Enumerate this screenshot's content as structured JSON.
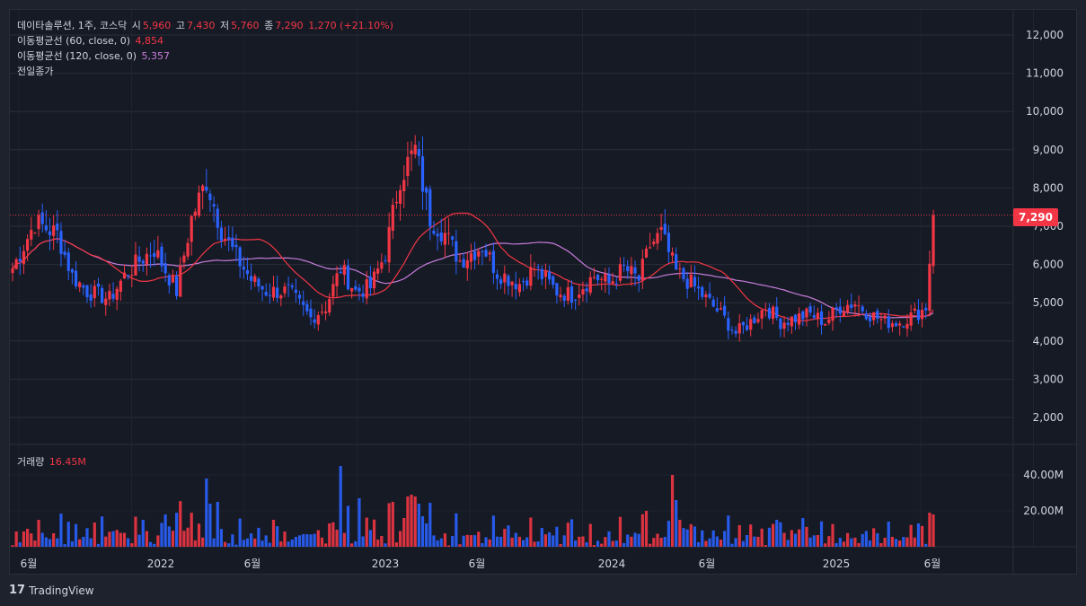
{
  "legend": {
    "symbol": "데이타솔루션, 1주, 코스닥",
    "open_label": "시",
    "open": "5,960",
    "high_label": "고",
    "high": "7,430",
    "low_label": "저",
    "low": "5,760",
    "close_label": "종",
    "close": "7,290",
    "change": "1,270 (+21.10%)",
    "ma60_label": "이동평균선 (60, close, 0)",
    "ma60_value": "4,854",
    "ma120_label": "이동평균선 (120, close, 0)",
    "ma120_value": "5,357",
    "prev_close_label": "전일종가",
    "volume_label": "거래량",
    "volume_value": "16.45M"
  },
  "last_price_badge": "7,290",
  "footer": {
    "brand": "TradingView"
  },
  "colors": {
    "up": "#f23645",
    "down": "#2962ff",
    "ma60": "#f23645",
    "ma120": "#c77ddb",
    "grid": "#2a2e39"
  },
  "chart_data": {
    "type": "candlestick",
    "interval": "1 week",
    "price_ylim": [
      1000,
      12500
    ],
    "price_ticks": [
      "12,000",
      "11,000",
      "10,000",
      "9,000",
      "8,000",
      "7,000",
      "6,000",
      "5,000",
      "4,000",
      "3,000",
      "2,000"
    ],
    "volume_ticks": [
      "40.00M",
      "20.00M"
    ],
    "x_ticks": [
      "6월",
      "2022",
      "6월",
      "2023",
      "6월",
      "2024",
      "6월",
      "2025",
      "6월"
    ],
    "last_close": 7290,
    "anchors": [
      {
        "t": 0,
        "c": 5900
      },
      {
        "t": 6,
        "c": 7100
      },
      {
        "t": 12,
        "c": 6800
      },
      {
        "t": 16,
        "c": 5700
      },
      {
        "t": 20,
        "c": 5300
      },
      {
        "t": 26,
        "c": 5100
      },
      {
        "t": 30,
        "c": 5700
      },
      {
        "t": 34,
        "c": 6100
      },
      {
        "t": 38,
        "c": 6400
      },
      {
        "t": 44,
        "c": 5300
      },
      {
        "t": 48,
        "c": 7200
      },
      {
        "t": 52,
        "c": 8200
      },
      {
        "t": 56,
        "c": 6900
      },
      {
        "t": 60,
        "c": 6200
      },
      {
        "t": 64,
        "c": 5600
      },
      {
        "t": 68,
        "c": 5300
      },
      {
        "t": 74,
        "c": 5300
      },
      {
        "t": 80,
        "c": 4600
      },
      {
        "t": 84,
        "c": 4900
      },
      {
        "t": 88,
        "c": 5900
      },
      {
        "t": 92,
        "c": 5300
      },
      {
        "t": 96,
        "c": 5400
      },
      {
        "t": 100,
        "c": 6300
      },
      {
        "t": 104,
        "c": 8300
      },
      {
        "t": 108,
        "c": 9000
      },
      {
        "t": 112,
        "c": 7200
      },
      {
        "t": 116,
        "c": 6800
      },
      {
        "t": 120,
        "c": 6100
      },
      {
        "t": 126,
        "c": 6500
      },
      {
        "t": 130,
        "c": 5800
      },
      {
        "t": 136,
        "c": 5500
      },
      {
        "t": 140,
        "c": 5900
      },
      {
        "t": 146,
        "c": 5300
      },
      {
        "t": 150,
        "c": 5200
      },
      {
        "t": 156,
        "c": 5700
      },
      {
        "t": 160,
        "c": 5500
      },
      {
        "t": 164,
        "c": 5900
      },
      {
        "t": 168,
        "c": 5600
      },
      {
        "t": 171,
        "c": 6500
      },
      {
        "t": 174,
        "c": 6800
      },
      {
        "t": 178,
        "c": 5800
      },
      {
        "t": 182,
        "c": 5500
      },
      {
        "t": 186,
        "c": 5100
      },
      {
        "t": 190,
        "c": 4700
      },
      {
        "t": 194,
        "c": 4200
      },
      {
        "t": 198,
        "c": 4500
      },
      {
        "t": 202,
        "c": 4900
      },
      {
        "t": 206,
        "c": 4500
      },
      {
        "t": 210,
        "c": 4600
      },
      {
        "t": 214,
        "c": 4700
      },
      {
        "t": 218,
        "c": 4500
      },
      {
        "t": 222,
        "c": 4900
      },
      {
        "t": 226,
        "c": 5000
      },
      {
        "t": 230,
        "c": 4700
      },
      {
        "t": 234,
        "c": 4500
      },
      {
        "t": 238,
        "c": 4500
      },
      {
        "t": 242,
        "c": 4700
      },
      {
        "t": 244,
        "c": 4800
      },
      {
        "t": 245,
        "c": 4800
      },
      {
        "t": 246,
        "c": 6020
      },
      {
        "t": 247,
        "c": 7290
      }
    ]
  }
}
